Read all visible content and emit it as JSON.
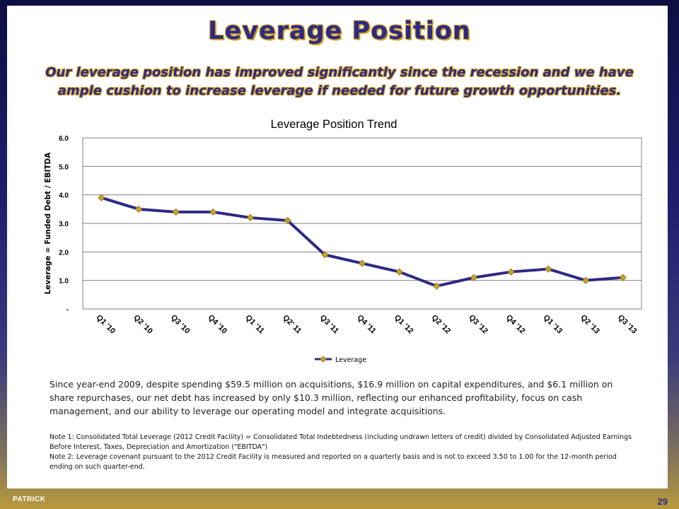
{
  "slide": {
    "title": "Leverage Position",
    "subtitle": "Our leverage position has improved significantly since the recession and we have ample cushion to increase leverage if needed for future growth opportunities.",
    "body": "Since year-end 2009, despite spending $59.5 million on acquisitions, $16.9 million on capital expenditures, and $6.1 million on share repurchases, our net debt has increased by only $10.3 million, reflecting our enhanced profitability, focus on cash management, and our ability to leverage our operating model and integrate acquisitions.",
    "notes": [
      "Note 1:  Consolidated Total Leverage  (2012 Credit Facility) =  Consolidated Total Indebtedness (including undrawn letters of credit) divided by Consolidated Adjusted Earnings Before Interest, Taxes, Depreciation and Amortization (\"EBITDA\")",
      "Note 2:  Leverage covenant pursuant to the 2012 Credit Facility is measured and reported on a quarterly basis and is not to exceed 3.50 to 1.00 for the 12-month period ending on such quarter-end."
    ],
    "logo_text": "PATRICK",
    "page_number": "29"
  },
  "chart_data": {
    "type": "line",
    "title": "Leverage Position Trend",
    "xlabel": "",
    "ylabel": "Leverage = Funded Debt / EBITDA",
    "categories": [
      "Q1 '10",
      "Q2 '10",
      "Q3 '10",
      "Q4 '10",
      "Q1 '11",
      "Q2' 11",
      "Q3 '11",
      "Q4 '11",
      "Q1 '12",
      "Q2 '12",
      "Q3 '12",
      "Q4 '12",
      "Q1 '13",
      "Q2 '13",
      "Q3 '13"
    ],
    "series": [
      {
        "name": "Leverage",
        "values": [
          3.9,
          3.5,
          3.4,
          3.4,
          3.2,
          3.1,
          1.9,
          1.6,
          1.3,
          0.8,
          1.1,
          1.3,
          1.4,
          1.0,
          1.1
        ]
      }
    ],
    "ylim": [
      0,
      6
    ],
    "yticks": [
      0,
      1,
      2,
      3,
      4,
      5,
      6
    ],
    "ytick_labels": [
      "-",
      "1.0",
      "2.0",
      "3.0",
      "4.0",
      "5.0",
      "6.0"
    ],
    "grid": true,
    "legend_position": "bottom",
    "colors": {
      "line": "#2e2a84",
      "marker": "#c9a227",
      "grid": "#808080"
    }
  }
}
